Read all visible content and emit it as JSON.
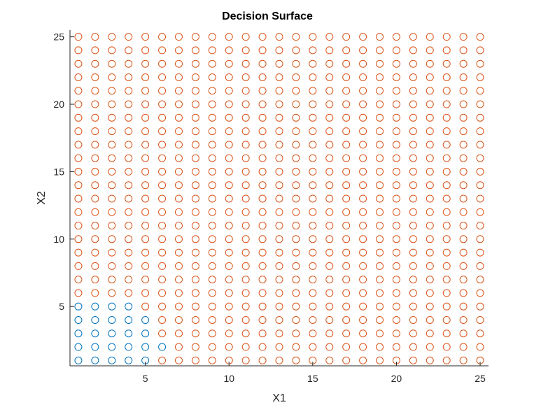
{
  "chart_data": {
    "type": "scatter",
    "title": "Decision Surface",
    "xlabel": "X1",
    "ylabel": "X2",
    "xlim": [
      0.5,
      25.5
    ],
    "ylim": [
      0.6,
      25.5
    ],
    "xticks": [
      5,
      10,
      15,
      20,
      25
    ],
    "yticks": [
      5,
      10,
      15,
      20,
      25
    ],
    "grid": false,
    "marker": "circle-open",
    "x_range": [
      1,
      25
    ],
    "y_range": [
      1,
      25
    ],
    "step": 1,
    "series": [
      {
        "color": "#0072BD",
        "points": [
          [
            1,
            1
          ],
          [
            2,
            1
          ],
          [
            3,
            1
          ],
          [
            4,
            1
          ],
          [
            5,
            1
          ],
          [
            1,
            2
          ],
          [
            2,
            2
          ],
          [
            3,
            2
          ],
          [
            4,
            2
          ],
          [
            5,
            2
          ],
          [
            6,
            2
          ],
          [
            1,
            3
          ],
          [
            2,
            3
          ],
          [
            3,
            3
          ],
          [
            4,
            3
          ],
          [
            5,
            3
          ],
          [
            1,
            4
          ],
          [
            2,
            4
          ],
          [
            3,
            4
          ],
          [
            4,
            4
          ],
          [
            5,
            4
          ],
          [
            1,
            5
          ],
          [
            2,
            5
          ],
          [
            3,
            5
          ],
          [
            4,
            5
          ]
        ]
      },
      {
        "color": "#D95319",
        "points": "all other grid points (x and y from 1 to 25)"
      }
    ]
  }
}
